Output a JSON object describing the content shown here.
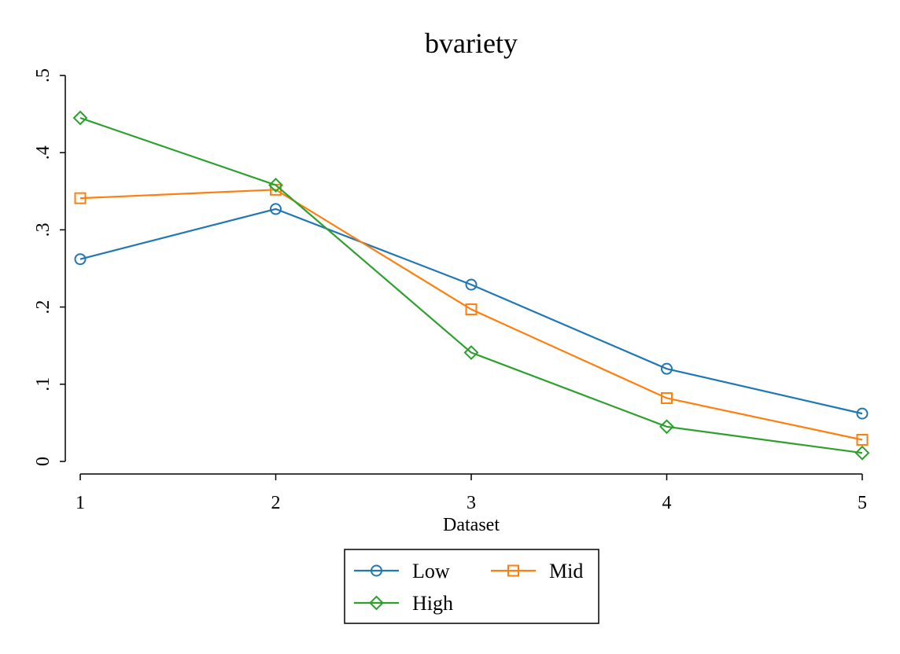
{
  "chart_data": {
    "type": "line",
    "title": "bvariety",
    "xlabel": "Dataset",
    "ylabel": "",
    "x": [
      1,
      2,
      3,
      4,
      5
    ],
    "x_tick_labels": [
      "1",
      "2",
      "3",
      "4",
      "5"
    ],
    "ylim": [
      0,
      0.5
    ],
    "y_ticks": [
      0,
      0.1,
      0.2,
      0.3,
      0.4,
      0.5
    ],
    "y_tick_labels": [
      "0",
      ".1",
      ".2",
      ".3",
      ".4",
      ".5"
    ],
    "grid": false,
    "legend_position": "bottom",
    "series": [
      {
        "name": "Low",
        "color": "#1f77b4",
        "marker": "circle",
        "values": [
          0.262,
          0.327,
          0.229,
          0.12,
          0.062
        ]
      },
      {
        "name": "Mid",
        "color": "#ff7f0e",
        "marker": "square",
        "values": [
          0.341,
          0.352,
          0.197,
          0.082,
          0.028
        ]
      },
      {
        "name": "High",
        "color": "#2ca02c",
        "marker": "diamond",
        "values": [
          0.445,
          0.358,
          0.141,
          0.045,
          0.011
        ]
      }
    ]
  }
}
